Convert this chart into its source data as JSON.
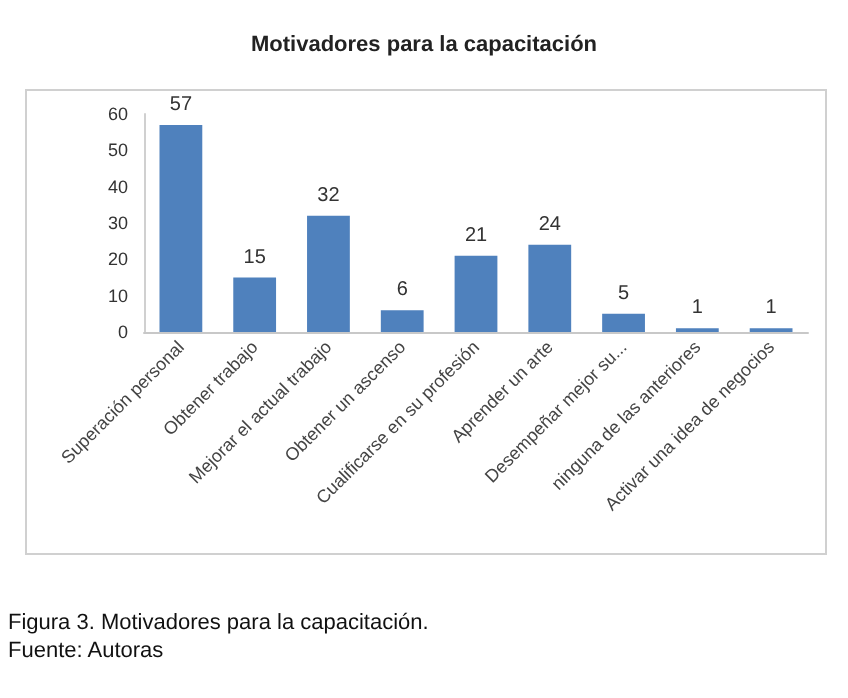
{
  "chart_data": {
    "type": "bar",
    "title": "Motivadores para la capacitación",
    "categories": [
      "Superación personal",
      "Obtener trabajo",
      "Mejorar el actual trabajo",
      "Obtener un ascenso",
      "Cualificarse en su profesión",
      "Aprender un arte",
      "Desempeñar mejor su...",
      "ninguna de las anteriores",
      "Activar una idea de negocios"
    ],
    "values": [
      57,
      15,
      32,
      6,
      21,
      24,
      5,
      1,
      1
    ],
    "color": "#4f81bd",
    "data_labels": true,
    "grid": false,
    "ylim": [
      0,
      60
    ],
    "yticks": [
      0,
      10,
      20,
      30,
      40,
      50,
      60
    ],
    "annotations": [
      "Figura 3. Motivadores para la capacitación.",
      "Fuente: Autoras"
    ]
  }
}
